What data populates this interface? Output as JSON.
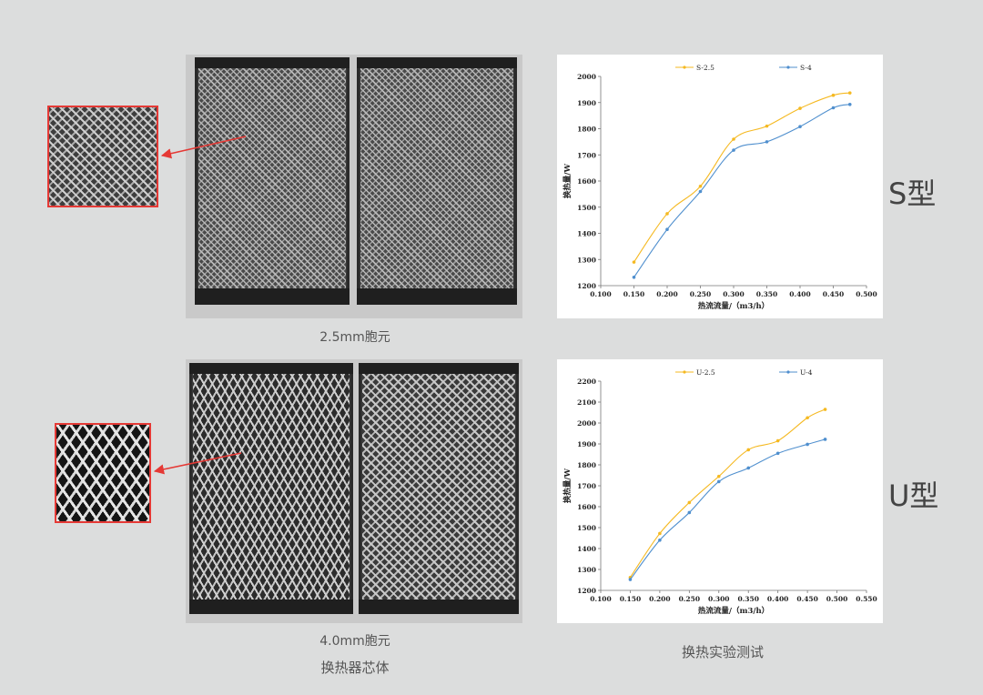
{
  "captions": {
    "cell_25": "2.5mm胞元",
    "cell_40": "4.0mm胞元",
    "core": "换热器芯体",
    "test": "换热实验测试"
  },
  "type_labels": {
    "s": "S型",
    "u": "U型"
  },
  "colors": {
    "series_a": "#f5b921",
    "series_b": "#4f8fce",
    "zoom_border": "#e53935"
  },
  "chart_data": [
    {
      "type": "line",
      "title": "",
      "xlabel": "热流流量/（m3/h）",
      "ylabel": "换热量/W",
      "xlim": [
        0.1,
        0.5
      ],
      "ylim": [
        1200,
        2000
      ],
      "xticks": [
        "0.100",
        "0.150",
        "0.200",
        "0.250",
        "0.300",
        "0.350",
        "0.400",
        "0.450",
        "0.500"
      ],
      "yticks": [
        "1200",
        "1300",
        "1400",
        "1500",
        "1600",
        "1700",
        "1800",
        "1900",
        "2000"
      ],
      "legend": "top",
      "series": [
        {
          "name": "S-2.5",
          "x": [
            0.15,
            0.2,
            0.25,
            0.3,
            0.35,
            0.4,
            0.45,
            0.475
          ],
          "values": [
            1290,
            1475,
            1580,
            1760,
            1810,
            1878,
            1928,
            1937
          ]
        },
        {
          "name": "S-4",
          "x": [
            0.15,
            0.2,
            0.25,
            0.3,
            0.35,
            0.4,
            0.45,
            0.475
          ],
          "values": [
            1232,
            1415,
            1560,
            1718,
            1750,
            1808,
            1880,
            1893
          ]
        }
      ]
    },
    {
      "type": "line",
      "title": "",
      "xlabel": "热流流量/（m3/h）",
      "ylabel": "换热量/W",
      "xlim": [
        0.1,
        0.55
      ],
      "ylim": [
        1200,
        2200
      ],
      "xticks": [
        "0.100",
        "0.150",
        "0.200",
        "0.250",
        "0.300",
        "0.350",
        "0.400",
        "0.450",
        "0.500",
        "0.550"
      ],
      "yticks": [
        "1200",
        "1300",
        "1400",
        "1500",
        "1600",
        "1700",
        "1800",
        "1900",
        "2000",
        "2100",
        "2200"
      ],
      "legend": "top",
      "series": [
        {
          "name": "U-2.5",
          "x": [
            0.15,
            0.2,
            0.25,
            0.3,
            0.35,
            0.4,
            0.45,
            0.48
          ],
          "values": [
            1262,
            1472,
            1620,
            1745,
            1872,
            1915,
            2025,
            2065
          ]
        },
        {
          "name": "U-4",
          "x": [
            0.15,
            0.2,
            0.25,
            0.3,
            0.35,
            0.4,
            0.45,
            0.48
          ],
          "values": [
            1252,
            1440,
            1572,
            1720,
            1785,
            1855,
            1898,
            1922
          ]
        }
      ]
    }
  ]
}
